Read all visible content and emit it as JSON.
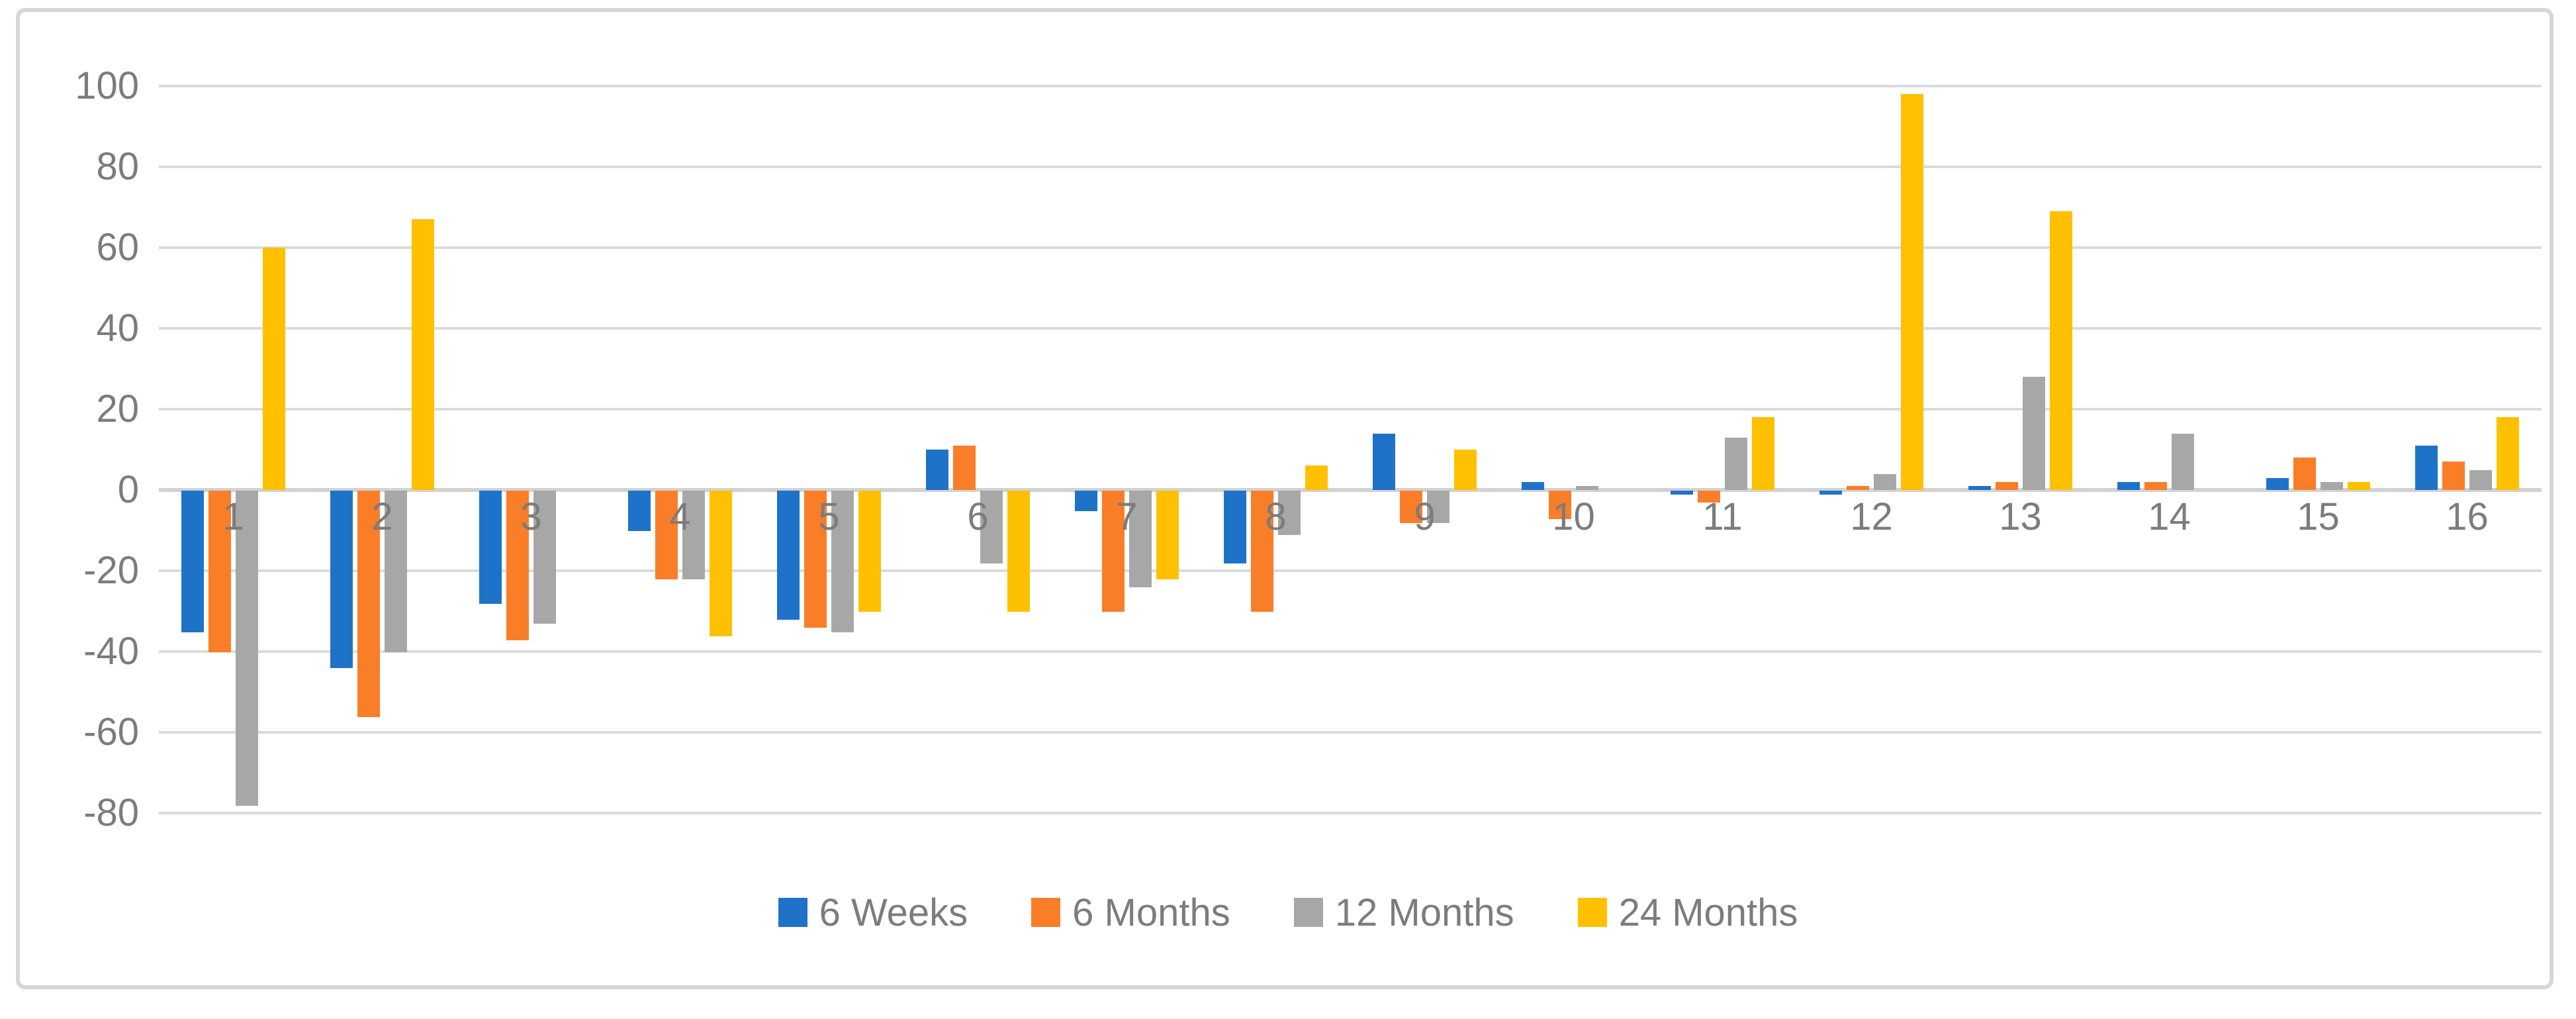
{
  "figure": {
    "background": "#ffffff",
    "border_color": "#d6d6d6"
  },
  "chart_data": {
    "type": "bar",
    "title": "",
    "xlabel": "",
    "ylabel": "",
    "categories": [
      "1",
      "2",
      "3",
      "4",
      "5",
      "6",
      "7",
      "8",
      "9",
      "10",
      "11",
      "12",
      "13",
      "14",
      "15",
      "16"
    ],
    "series": [
      {
        "name": "6 Weeks",
        "color": "#1e73c8",
        "values": [
          -35,
          -44,
          -28,
          -10,
          -32,
          10,
          -5,
          -18,
          14,
          2,
          -1,
          -1,
          1,
          2,
          3,
          11
        ]
      },
      {
        "name": "6 Months",
        "color": "#fa7d28",
        "values": [
          -40,
          -56,
          -37,
          -22,
          -34,
          11,
          -30,
          -30,
          -8,
          -7,
          -3,
          1,
          2,
          2,
          8,
          7
        ]
      },
      {
        "name": "12 Months",
        "color": "#a7a7a7",
        "values": [
          -78,
          -40,
          -33,
          -22,
          -35,
          -18,
          -24,
          -11,
          -8,
          1,
          13,
          4,
          28,
          14,
          2,
          5
        ]
      },
      {
        "name": "24 Months",
        "color": "#ffc000",
        "values": [
          60,
          67,
          0,
          -36,
          -30,
          -30,
          -22,
          6,
          10,
          0,
          18,
          98,
          69,
          0,
          2,
          18
        ]
      }
    ],
    "y_ticks": [
      100,
      80,
      60,
      40,
      20,
      0,
      -20,
      -40,
      -60,
      -80
    ],
    "ylim": [
      -80,
      100
    ],
    "grid": true,
    "gridline_color": "#dbdbdb",
    "tick_label_color": "#7c7c7c",
    "legend_position": "bottom"
  },
  "legend": {
    "items": [
      "6 Weeks",
      "6 Months",
      "12 Months",
      "24 Months"
    ]
  }
}
